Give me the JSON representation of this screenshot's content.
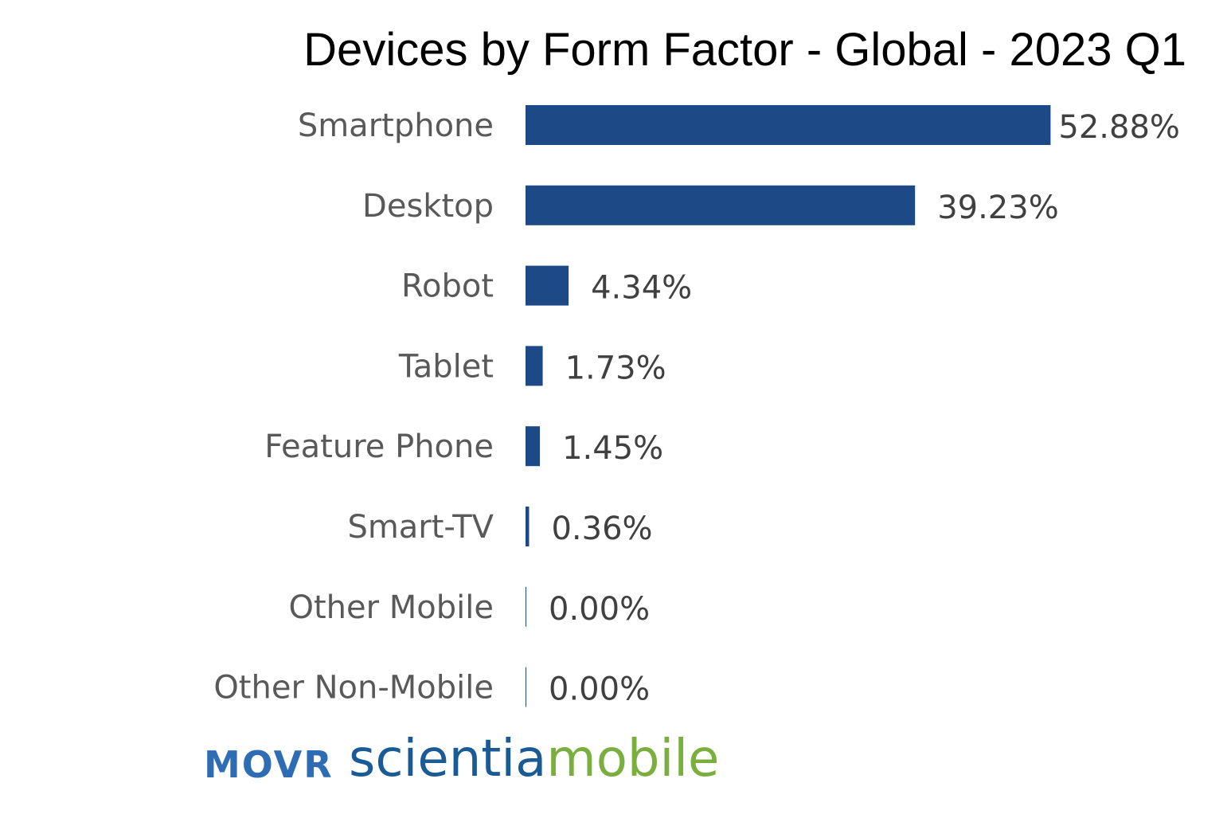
{
  "chart_data": {
    "type": "bar",
    "orientation": "horizontal",
    "title": "Devices by Form Factor - Global - 2023 Q1",
    "categories": [
      "Smartphone",
      "Desktop",
      "Robot",
      "Tablet",
      "Feature Phone",
      "Smart-TV",
      "Other Mobile",
      "Other Non-Mobile"
    ],
    "values": [
      52.88,
      39.23,
      4.34,
      1.73,
      1.45,
      0.36,
      0.0,
      0.0
    ],
    "value_labels": [
      "52.88%",
      "39.23%",
      "4.34%",
      "1.73%",
      "1.45%",
      "0.36%",
      "0.00%",
      "0.00%"
    ],
    "unit": "%",
    "bar_color": "#1d4a87",
    "grid": false,
    "legend": "none"
  },
  "branding": {
    "movr": "MOVR",
    "scientia": "scientia",
    "mobile": "mobile",
    "movr_color": "#2e6db4",
    "scientia_color": "#1a5b96",
    "mobile_color": "#7aae3e"
  }
}
